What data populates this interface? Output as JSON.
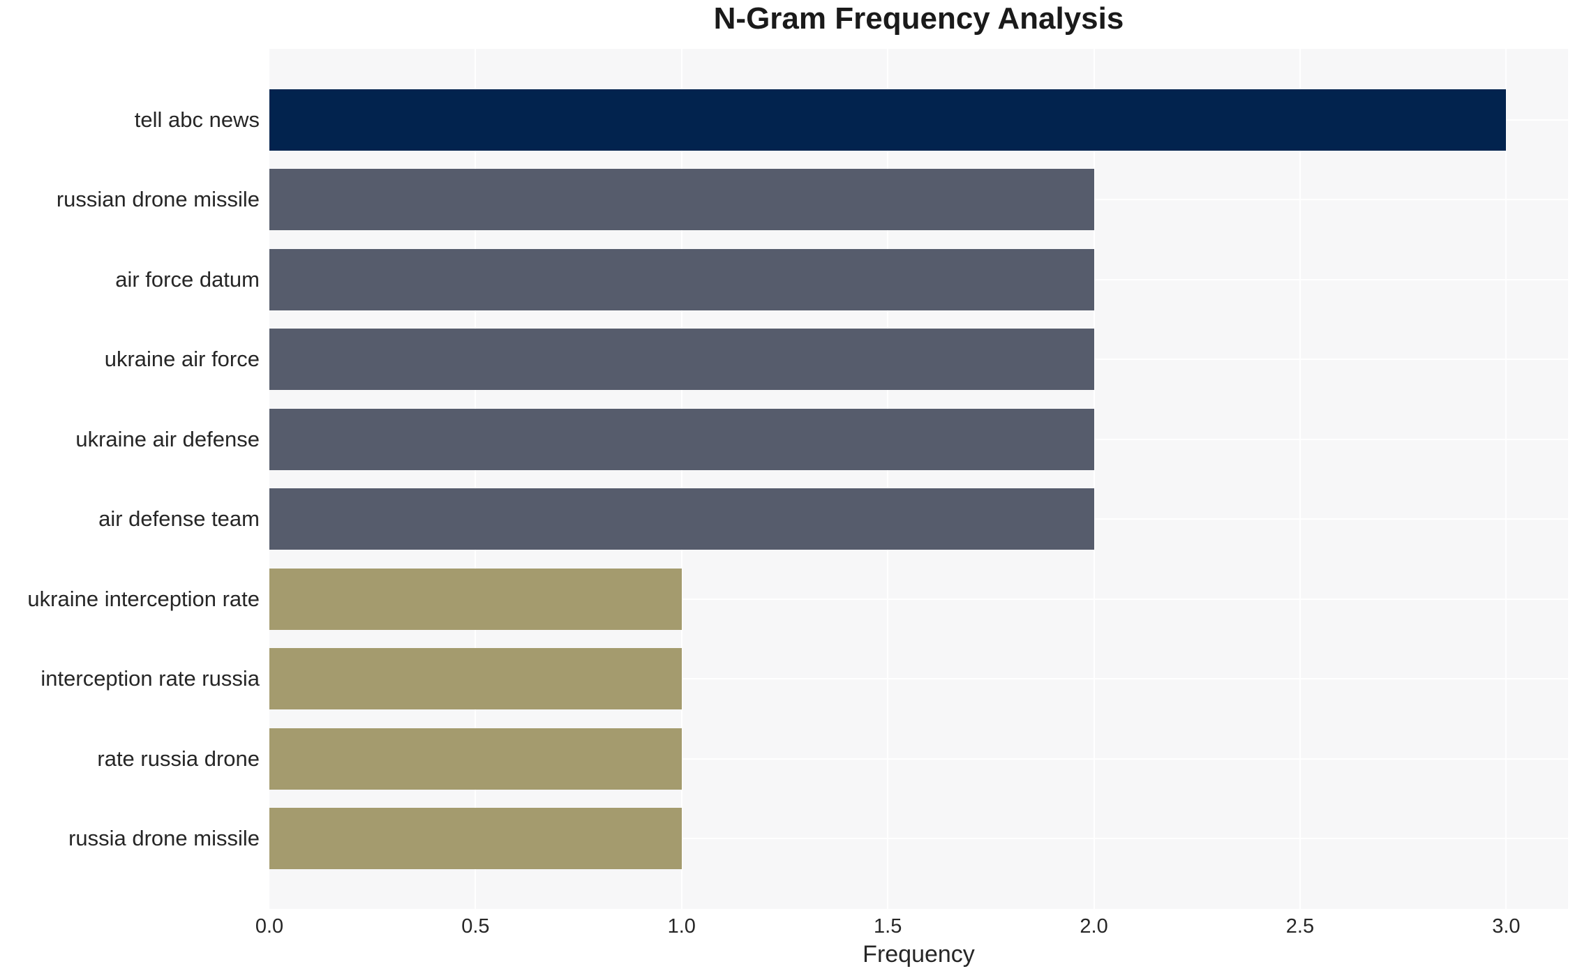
{
  "chart_data": {
    "type": "bar",
    "orientation": "horizontal",
    "title": "N-Gram Frequency Analysis",
    "xlabel": "Frequency",
    "ylabel": "",
    "categories": [
      "tell abc news",
      "russian drone missile",
      "air force datum",
      "ukraine air force",
      "ukraine air defense",
      "air defense team",
      "ukraine interception rate",
      "interception rate russia",
      "rate russia drone",
      "russia drone missile"
    ],
    "values": [
      3,
      2,
      2,
      2,
      2,
      2,
      1,
      1,
      1,
      1
    ],
    "bar_colors": [
      "#02234e",
      "#565c6c",
      "#565c6c",
      "#565c6c",
      "#565c6c",
      "#565c6c",
      "#a49b6e",
      "#a49b6e",
      "#a49b6e",
      "#a49b6e"
    ],
    "xticks": [
      0.0,
      0.5,
      1.0,
      1.5,
      2.0,
      2.5,
      3.0
    ],
    "xtick_labels": [
      "0.0",
      "0.5",
      "1.0",
      "1.5",
      "2.0",
      "2.5",
      "3.0"
    ],
    "xlim": [
      0,
      3.15
    ],
    "grid": true,
    "legend": false,
    "plot_background": "#f7f7f8",
    "grid_color": "#ffffff",
    "figure_background": "#ffffff"
  }
}
